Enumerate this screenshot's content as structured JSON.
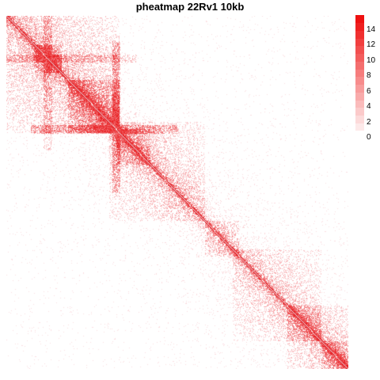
{
  "chart_data": {
    "type": "heatmap",
    "title": "pheatmap 22Rv1 10kb",
    "xlabel": "",
    "ylabel": "",
    "grid": false,
    "matrix_description": "symmetric Hi-C contact map; strong diagonal with block-like domains",
    "domains": [
      {
        "start": 0.0,
        "end": 0.33,
        "strength": 0.55
      },
      {
        "start": 0.08,
        "end": 0.16,
        "strength": 0.6
      },
      {
        "start": 0.18,
        "end": 0.33,
        "strength": 0.6
      },
      {
        "start": 0.3,
        "end": 0.58,
        "strength": 0.45
      },
      {
        "start": 0.32,
        "end": 0.42,
        "strength": 0.55
      },
      {
        "start": 0.58,
        "end": 0.68,
        "strength": 0.5
      },
      {
        "start": 0.66,
        "end": 0.92,
        "strength": 0.4
      },
      {
        "start": 0.82,
        "end": 1.0,
        "strength": 0.5
      },
      {
        "start": 0.92,
        "end": 1.0,
        "strength": 0.55
      }
    ],
    "stripes": [
      {
        "position": 0.32,
        "from": 0.07,
        "to": 0.5,
        "strength": 0.35
      },
      {
        "position": 0.12,
        "from": 0.0,
        "to": 0.38,
        "strength": 0.25
      }
    ],
    "legend": {
      "min": 0,
      "max": 15,
      "ticks": [
        0,
        2,
        4,
        6,
        8,
        10,
        12,
        14
      ],
      "low_color": "#fde9e9",
      "high_color": "#ee1111",
      "placement": "right"
    }
  }
}
